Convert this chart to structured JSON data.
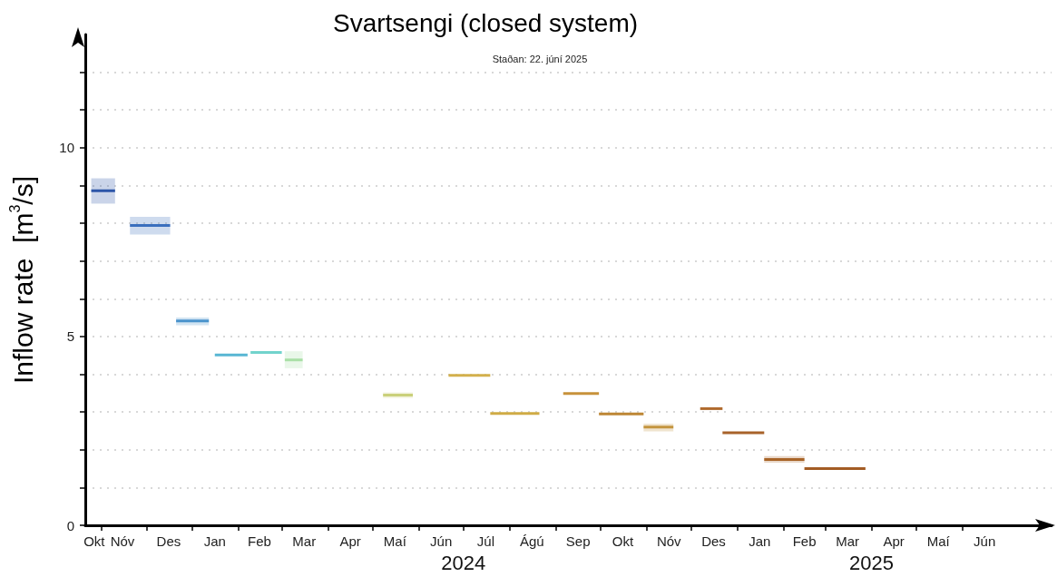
{
  "chart_data": {
    "type": "line",
    "title": "Svartsengi (closed system)",
    "subtitle": "Staðan: 22. júní 2025",
    "ylabel": "Inflow rate  [m$^{3}$/s]",
    "xlim": [
      "2023-10-21",
      "2025-07-31"
    ],
    "xticks": [
      {
        "value": "2023-10-27",
        "label": "Okt"
      },
      {
        "value": "2023-11-15",
        "label": "Nóv"
      },
      {
        "value": "2023-12-16",
        "label": "Des"
      },
      {
        "value": "2024-01-16",
        "label": "Jan"
      },
      {
        "value": "2024-02-15",
        "label": "Feb"
      },
      {
        "value": "2024-03-16",
        "label": "Mar"
      },
      {
        "value": "2024-04-16",
        "label": "Apr"
      },
      {
        "value": "2024-05-16",
        "label": "Maí"
      },
      {
        "value": "2024-06-16",
        "label": "Jún"
      },
      {
        "value": "2024-07-16",
        "label": "Júl"
      },
      {
        "value": "2024-08-16",
        "label": "Ágú"
      },
      {
        "value": "2024-09-16",
        "label": "Sep"
      },
      {
        "value": "2024-10-16",
        "label": "Okt"
      },
      {
        "value": "2024-11-16",
        "label": "Nóv"
      },
      {
        "value": "2024-12-16",
        "label": "Des"
      },
      {
        "value": "2025-01-16",
        "label": "Jan"
      },
      {
        "value": "2025-02-15",
        "label": "Feb"
      },
      {
        "value": "2025-03-16",
        "label": "Mar"
      },
      {
        "value": "2025-04-16",
        "label": "Apr"
      },
      {
        "value": "2025-05-16",
        "label": "Maí"
      },
      {
        "value": "2025-06-16",
        "label": "Jún"
      },
      {
        "value": "2023-11-01",
        "label": null
      },
      {
        "value": "2023-12-01",
        "label": null
      },
      {
        "value": "2024-01-01",
        "label": null
      },
      {
        "value": "2024-02-01",
        "label": null
      },
      {
        "value": "2024-03-01",
        "label": null
      },
      {
        "value": "2024-04-01",
        "label": null
      },
      {
        "value": "2024-05-01",
        "label": null
      },
      {
        "value": "2024-06-01",
        "label": null
      },
      {
        "value": "2024-07-01",
        "label": null
      },
      {
        "value": "2024-08-01",
        "label": null
      },
      {
        "value": "2024-09-01",
        "label": null
      },
      {
        "value": "2024-10-01",
        "label": null
      },
      {
        "value": "2024-11-01",
        "label": null
      },
      {
        "value": "2024-12-01",
        "label": null
      },
      {
        "value": "2025-01-01",
        "label": null
      },
      {
        "value": "2025-02-01",
        "label": null
      },
      {
        "value": "2025-03-01",
        "label": null
      },
      {
        "value": "2025-04-01",
        "label": null
      },
      {
        "value": "2025-05-01",
        "label": null
      },
      {
        "value": "2025-06-01",
        "label": null
      }
    ],
    "ylim": [
      0,
      13
    ],
    "yticks": [
      0,
      {
        "value": 1,
        "label": null
      },
      {
        "value": 2,
        "label": null
      },
      {
        "value": 3,
        "label": null
      },
      {
        "value": 4,
        "label": null
      },
      5,
      {
        "value": 6,
        "label": null
      },
      {
        "value": 7,
        "label": null
      },
      {
        "value": 8,
        "label": null
      },
      {
        "value": 9,
        "label": null
      },
      10,
      {
        "value": 11,
        "label": null
      },
      {
        "value": 12,
        "label": null
      }
    ],
    "grid": "y",
    "marker": "none",
    "line_style": "solid",
    "x2lim": [
      "2023-10-21",
      "2025-07-31"
    ],
    "x2ticks": [
      {
        "value": "2024-07-01",
        "label": "2024"
      },
      {
        "value": "2025-04-01",
        "label": "2025"
      }
    ],
    "series": [
      {
        "color": "#2c55a8",
        "x": [
          "2023-10-25",
          "2023-11-10"
        ],
        "values": [
          8.86,
          8.86
        ],
        "lower": [
          8.52,
          8.52
        ],
        "upper": [
          9.19,
          9.19
        ]
      },
      {
        "color": "#3a6fbd",
        "x": [
          "2023-11-20",
          "2023-12-17"
        ],
        "values": [
          7.94,
          7.94
        ],
        "lower": [
          7.7,
          7.7
        ],
        "upper": [
          8.17,
          8.17
        ]
      },
      {
        "color": "#4a93cc",
        "x": [
          "2023-12-21",
          "2024-01-12"
        ],
        "values": [
          5.41,
          5.41
        ],
        "lower": [
          5.3,
          5.3
        ],
        "upper": [
          5.5,
          5.5
        ]
      },
      {
        "color": "#58b6d3",
        "x": [
          "2024-01-16",
          "2024-02-07"
        ],
        "values": [
          4.51,
          4.51
        ]
      },
      {
        "color": "#72d3cc",
        "x": [
          "2024-02-09",
          "2024-03-01"
        ],
        "values": [
          4.58,
          4.58
        ]
      },
      {
        "color": "#a9dfa6",
        "x": [
          "2024-03-03",
          "2024-03-15"
        ],
        "values": [
          4.38,
          4.38
        ],
        "lower": [
          4.16,
          4.16
        ],
        "upper": [
          4.61,
          4.61
        ]
      },
      {
        "color": "#cad07a",
        "x": [
          "2024-05-08",
          "2024-05-28"
        ],
        "values": [
          3.45,
          3.45
        ],
        "lower": [
          3.37,
          3.37
        ],
        "upper": [
          3.52,
          3.52
        ]
      },
      {
        "color": "#d3b04c",
        "x": [
          "2024-06-21",
          "2024-07-19"
        ],
        "values": [
          3.97,
          3.97
        ]
      },
      {
        "color": "#cfab45",
        "x": [
          "2024-07-19",
          "2024-08-21"
        ],
        "values": [
          2.96,
          2.96
        ]
      },
      {
        "color": "#c7923a",
        "x": [
          "2024-09-06",
          "2024-09-30"
        ],
        "values": [
          3.49,
          3.49
        ]
      },
      {
        "color": "#bd8634",
        "x": [
          "2024-09-30",
          "2024-10-30"
        ],
        "values": [
          2.95,
          2.95
        ]
      },
      {
        "color": "#c4953f",
        "x": [
          "2024-10-30",
          "2024-11-19"
        ],
        "values": [
          2.6,
          2.6
        ],
        "lower": [
          2.49,
          2.49
        ],
        "upper": [
          2.69,
          2.69
        ]
      },
      {
        "color": "#b06a2e",
        "x": [
          "2024-12-07",
          "2024-12-22"
        ],
        "values": [
          3.09,
          3.09
        ]
      },
      {
        "color": "#a8622a",
        "x": [
          "2024-12-22",
          "2025-01-19"
        ],
        "values": [
          2.45,
          2.45
        ]
      },
      {
        "color": "#a86428",
        "x": [
          "2025-01-19",
          "2025-02-15"
        ],
        "values": [
          1.74,
          1.74
        ],
        "lower": [
          1.66,
          1.66
        ],
        "upper": [
          1.83,
          1.83
        ]
      },
      {
        "color": "#a35c24",
        "x": [
          "2025-02-15",
          "2025-03-28"
        ],
        "values": [
          1.5,
          1.5
        ]
      }
    ]
  }
}
